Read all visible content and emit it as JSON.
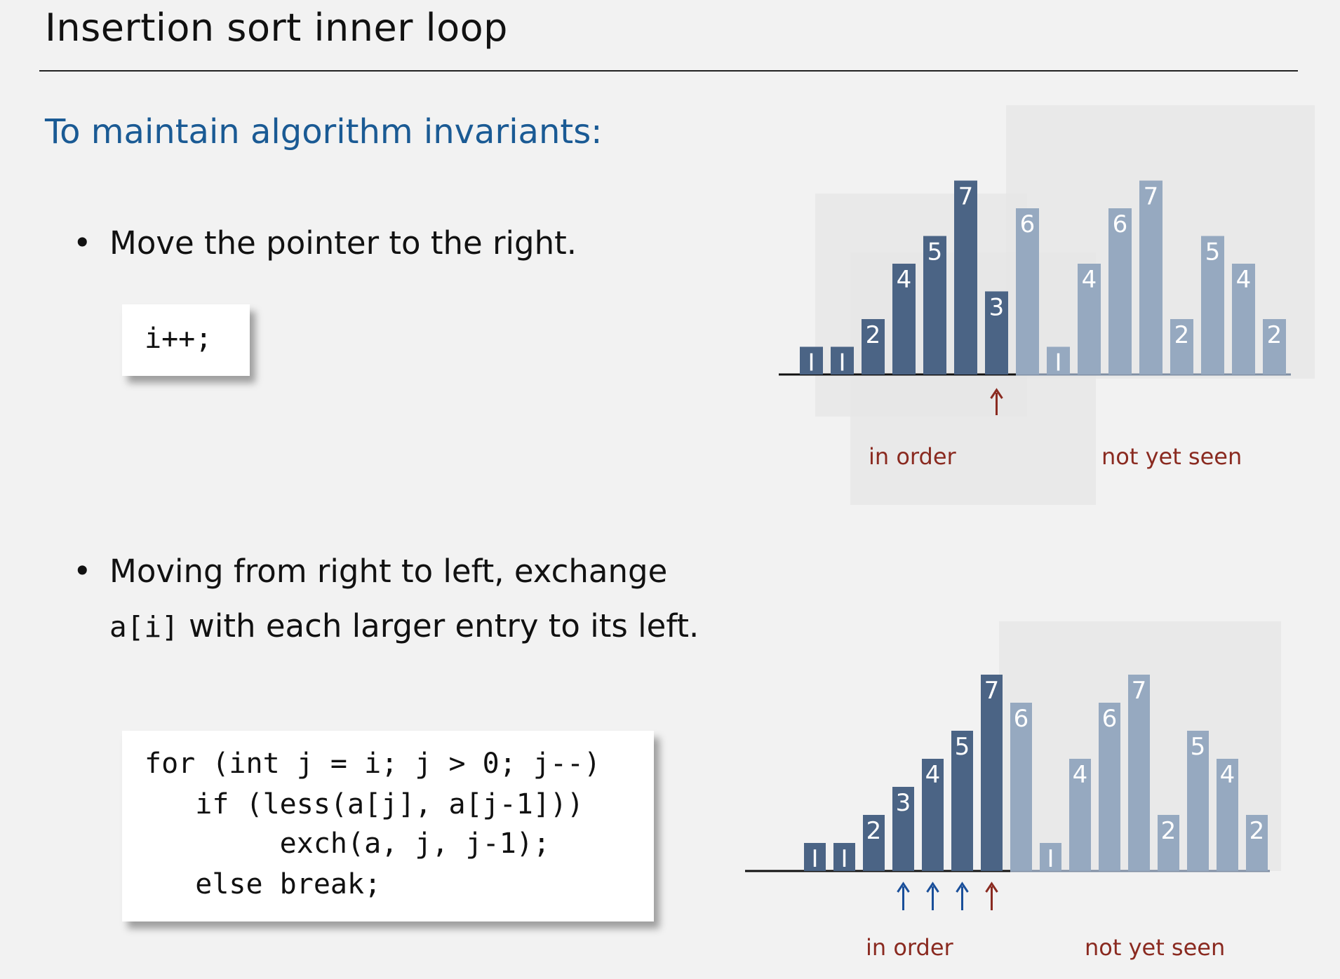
{
  "title": "Insertion sort inner loop",
  "subtitle": "To maintain algorithm invariants:",
  "bullets": [
    {
      "text": "Move the pointer to the right."
    },
    {
      "text_line1": "Moving from right to left, exchange",
      "code": "a[i]",
      "text_line2": " with each larger entry to its left."
    }
  ],
  "code1": [
    "i++;"
  ],
  "code2": [
    "for (int j = i; j > 0; j--)",
    "   if (less(a[j], a[j-1]))",
    "        exch(a, j, j-1);",
    "   else break;"
  ],
  "diagram1": {
    "values": [
      1,
      1,
      2,
      4,
      5,
      7,
      3,
      6,
      1,
      4,
      6,
      7,
      2,
      5,
      4,
      2
    ],
    "labels": [
      "I",
      "I",
      "2",
      "4",
      "5",
      "7",
      "3",
      "6",
      "I",
      "4",
      "6",
      "7",
      "2",
      "5",
      "4",
      "2"
    ],
    "in_order_count": 7,
    "pointer_index": 6,
    "in_order_label": "in order",
    "not_seen_label": "not yet seen"
  },
  "diagram2": {
    "values": [
      1,
      1,
      2,
      3,
      4,
      5,
      7,
      6,
      1,
      4,
      6,
      7,
      2,
      5,
      4,
      2
    ],
    "labels": [
      "I",
      "I",
      "2",
      "3",
      "4",
      "5",
      "7",
      "6",
      "I",
      "4",
      "6",
      "7",
      "2",
      "5",
      "4",
      "2"
    ],
    "in_order_count": 7,
    "blue_arrow_indices": [
      3,
      4,
      5
    ],
    "red_arrow_index": 6,
    "in_order_label": "in order",
    "not_seen_label": "not yet seen"
  },
  "colors": {
    "dark_bar": "#4b6485",
    "light_bar": "#96a9c0",
    "red": "#8a2a20",
    "blue": "#1a4f9a",
    "title_blue": "#1a5a94"
  }
}
